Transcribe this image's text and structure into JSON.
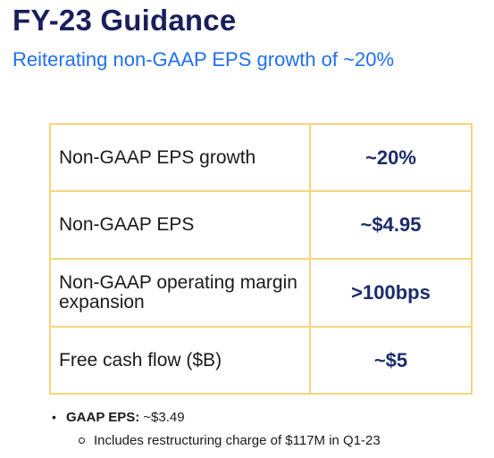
{
  "header": {
    "title": "FY-23 Guidance",
    "subtitle": "Reiterating non-GAAP EPS growth of ~20%"
  },
  "table": {
    "rows": [
      {
        "label": "Non-GAAP EPS growth",
        "value": "~20%"
      },
      {
        "label": "Non-GAAP EPS",
        "value": "~$4.95"
      },
      {
        "label": "Non-GAAP operating margin expansion",
        "value": ">100bps"
      },
      {
        "label": "Free cash flow ($B)",
        "value": "~$5"
      }
    ]
  },
  "notes": {
    "bullet": {
      "key": "GAAP EPS:",
      "value": "~$3.49"
    },
    "sub_bullet": "Includes restructuring charge of $117M in Q1-23"
  },
  "colors": {
    "title": "#1a1f5c",
    "subtitle": "#1f6ff0",
    "table_border": "#f7d57a",
    "value_text": "#1b2b6b"
  }
}
